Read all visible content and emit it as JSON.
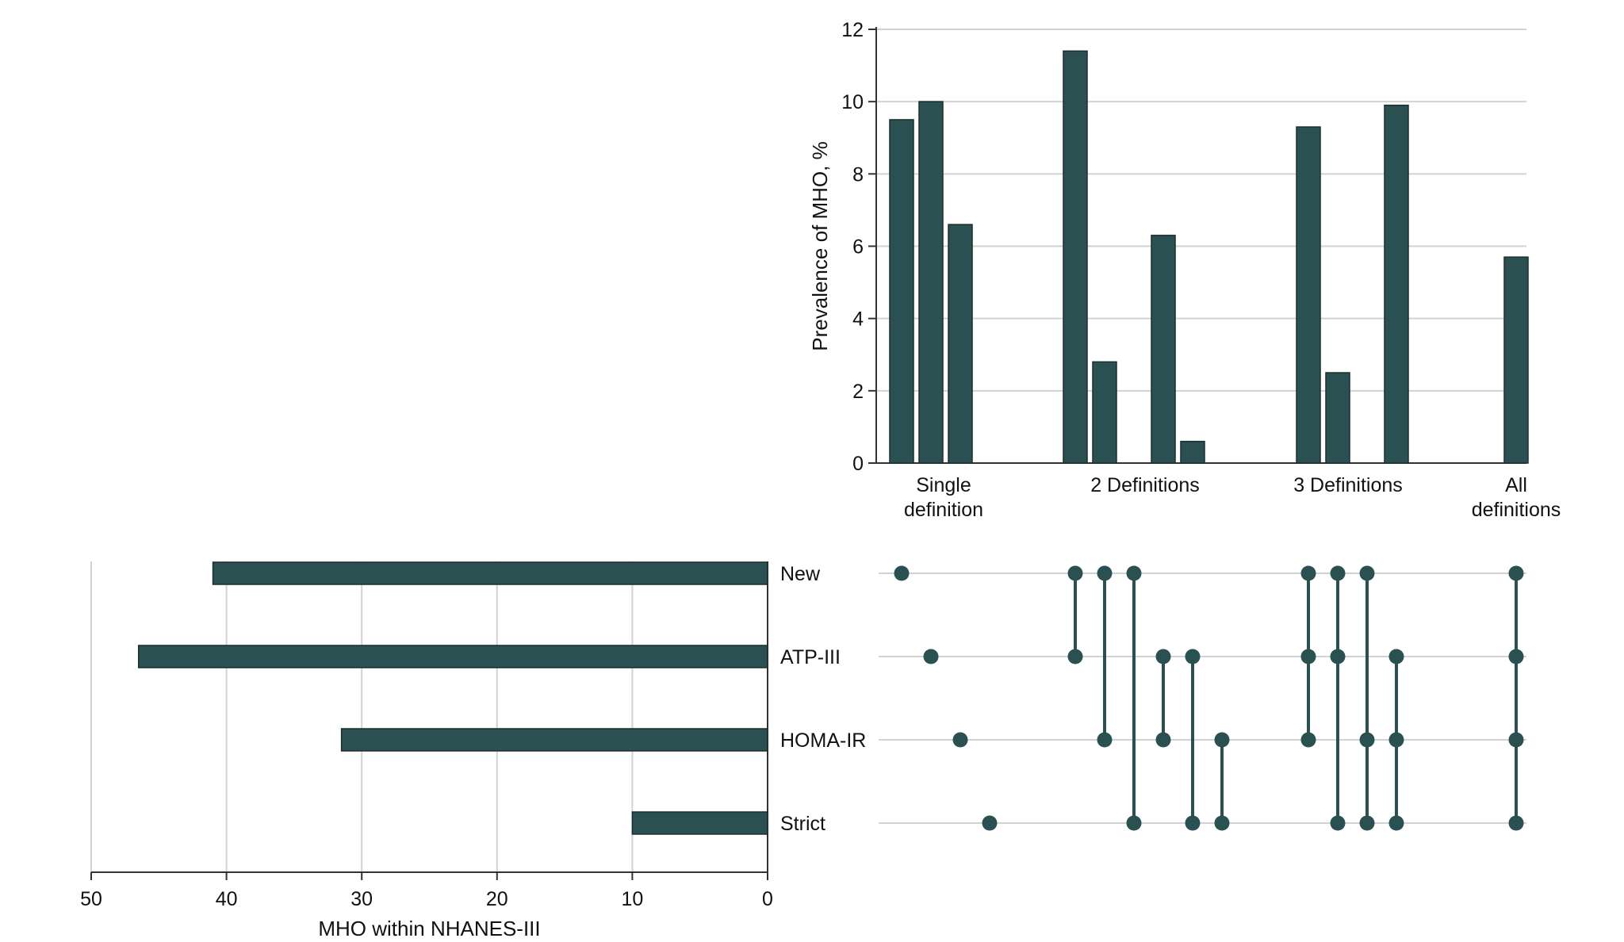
{
  "chart_data": [
    {
      "type": "bar",
      "orientation": "vertical",
      "ylabel": "Prevalence of MHO, %",
      "ylim": [
        0,
        12
      ],
      "yticks": [
        0,
        2,
        4,
        6,
        8,
        10,
        12
      ],
      "groups": [
        {
          "label": [
            "Single",
            "definition"
          ]
        },
        {
          "label": [
            "2 Definitions"
          ]
        },
        {
          "label": [
            "3 Definitions"
          ]
        },
        {
          "label": [
            "All",
            "definitions"
          ]
        }
      ],
      "intersections": [
        {
          "sets": [
            "New"
          ],
          "value": 9.5
        },
        {
          "sets": [
            "ATP-III"
          ],
          "value": 10.0
        },
        {
          "sets": [
            "HOMA-IR"
          ],
          "value": 6.6
        },
        {
          "sets": [
            "Strict"
          ],
          "value": 0
        },
        {
          "sets": [
            "New",
            "ATP-III"
          ],
          "value": 11.4
        },
        {
          "sets": [
            "New",
            "HOMA-IR"
          ],
          "value": 2.8
        },
        {
          "sets": [
            "New",
            "Strict"
          ],
          "value": 0
        },
        {
          "sets": [
            "ATP-III",
            "HOMA-IR"
          ],
          "value": 6.3
        },
        {
          "sets": [
            "ATP-III",
            "Strict"
          ],
          "value": 0.6
        },
        {
          "sets": [
            "HOMA-IR",
            "Strict"
          ],
          "value": 0
        },
        {
          "sets": [
            "New",
            "ATP-III",
            "HOMA-IR"
          ],
          "value": 9.3
        },
        {
          "sets": [
            "New",
            "ATP-III",
            "Strict"
          ],
          "value": 2.5
        },
        {
          "sets": [
            "New",
            "HOMA-IR",
            "Strict"
          ],
          "value": 0
        },
        {
          "sets": [
            "ATP-III",
            "HOMA-IR",
            "Strict"
          ],
          "value": 9.9
        },
        {
          "sets": [
            "New",
            "ATP-III",
            "HOMA-IR",
            "Strict"
          ],
          "value": 5.7
        }
      ]
    },
    {
      "type": "bar",
      "orientation": "horizontal",
      "xlabel": "MHO within NHANES-III",
      "xlim": [
        50,
        0
      ],
      "xticks": [
        50,
        40,
        30,
        20,
        10,
        0
      ],
      "categories": [
        "New",
        "ATP-III",
        "HOMA-IR",
        "Strict"
      ],
      "values": [
        41,
        46.5,
        31.5,
        10
      ]
    }
  ],
  "colors": {
    "bar": "#2a5052",
    "grid": "#d2d2d2"
  }
}
